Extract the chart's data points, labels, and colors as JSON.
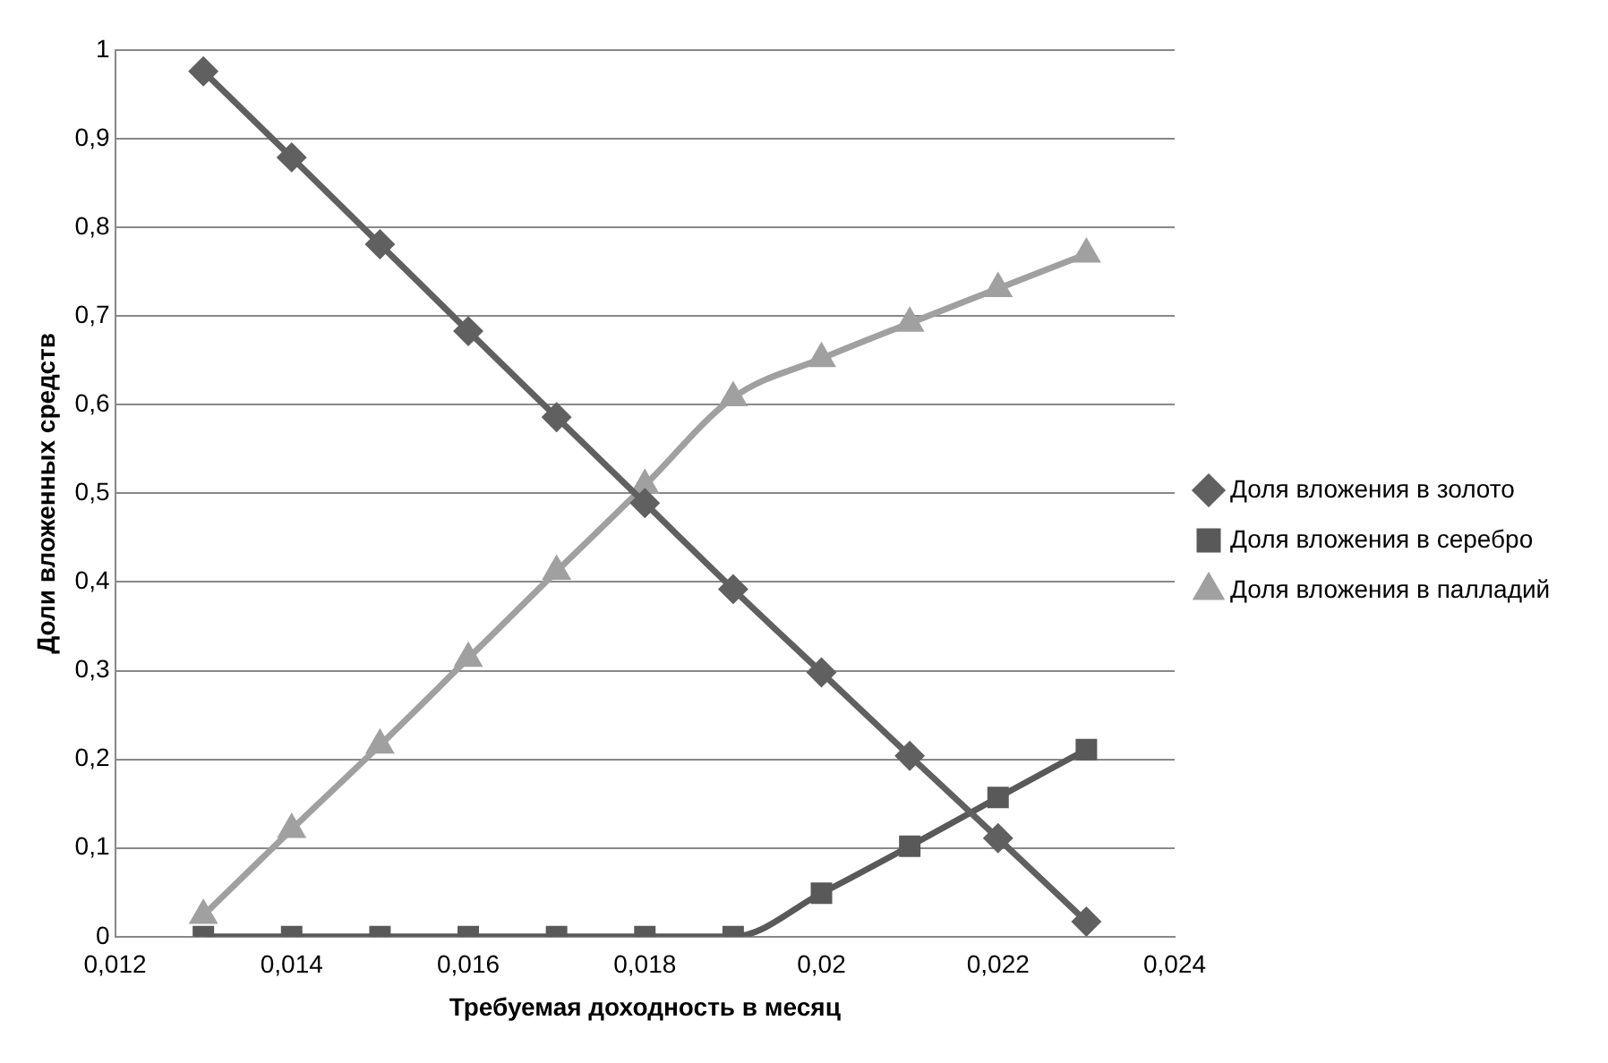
{
  "chart_data": {
    "type": "line",
    "xlabel": "Требуемая доходность в месяц",
    "ylabel": "Доли вложенных средств",
    "x": [
      0.013,
      0.014,
      0.015,
      0.016,
      0.017,
      0.018,
      0.019,
      0.02,
      0.021,
      0.022,
      0.023
    ],
    "series": [
      {
        "name": "Доля вложения в золото",
        "color": "#606060",
        "marker": "diamond",
        "values": [
          0.976,
          0.879,
          0.781,
          0.683,
          0.586,
          0.489,
          0.392,
          0.298,
          0.204,
          0.111,
          0.017
        ]
      },
      {
        "name": "Доля вложения в серебро",
        "color": "#595959",
        "marker": "square",
        "values": [
          0,
          0,
          0,
          0,
          0,
          0,
          0,
          0.049,
          0.102,
          0.157,
          0.211
        ]
      },
      {
        "name": "Доля вложения в палладий",
        "color": "#a0a0a0",
        "marker": "triangle",
        "values": [
          0.024,
          0.121,
          0.216,
          0.314,
          0.412,
          0.509,
          0.608,
          0.652,
          0.692,
          0.731,
          0.77
        ]
      }
    ],
    "xlim": [
      0.012,
      0.024
    ],
    "xticks": [
      {
        "value": 0.012,
        "label": "0,012"
      },
      {
        "value": 0.014,
        "label": "0,014"
      },
      {
        "value": 0.016,
        "label": "0,016"
      },
      {
        "value": 0.018,
        "label": "0,018"
      },
      {
        "value": 0.02,
        "label": "0,02"
      },
      {
        "value": 0.022,
        "label": "0,022"
      },
      {
        "value": 0.024,
        "label": "0,024"
      }
    ],
    "ylim": [
      0,
      1
    ],
    "yticks": [
      0,
      {
        "value": 0.1,
        "label": "0,1"
      },
      {
        "value": 0.2,
        "label": "0,2"
      },
      {
        "value": 0.3,
        "label": "0,3"
      },
      {
        "value": 0.4,
        "label": "0,4"
      },
      {
        "value": 0.5,
        "label": "0,5"
      },
      {
        "value": 0.6,
        "label": "0,6"
      },
      {
        "value": 0.7,
        "label": "0,7"
      },
      {
        "value": 0.8,
        "label": "0,8"
      },
      {
        "value": 0.9,
        "label": "0,9"
      },
      1
    ],
    "grid": "y",
    "legend": "right",
    "line_style": "solid"
  }
}
